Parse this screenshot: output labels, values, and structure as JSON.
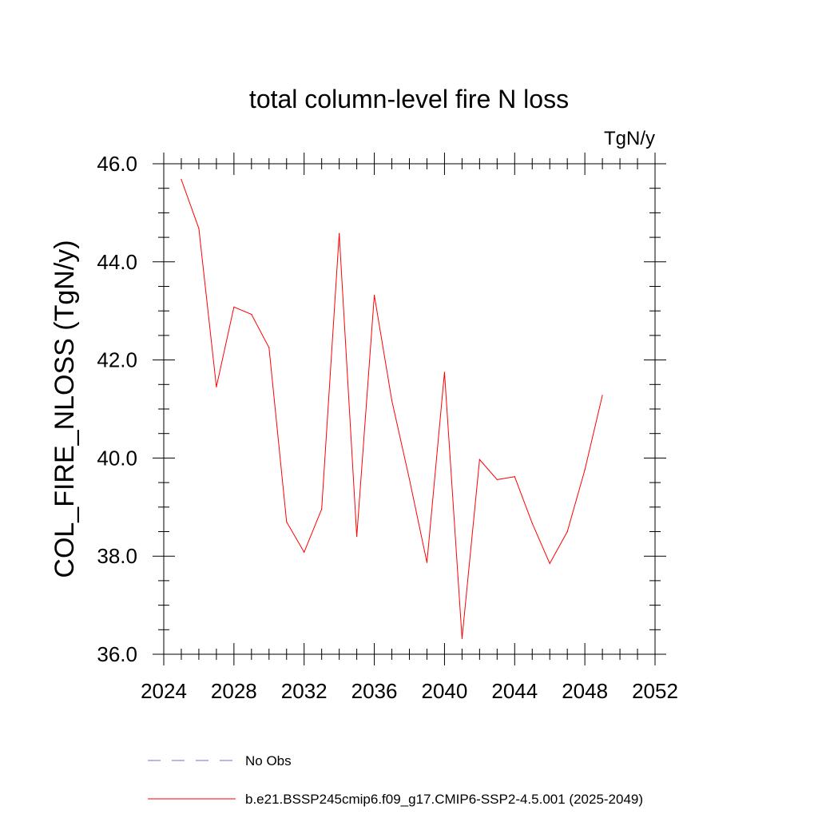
{
  "chart_data": {
    "type": "line",
    "title": "total column-level fire N loss",
    "units": "TgN/y",
    "ylabel": "COL_FIRE_NLOSS  (TgN/y)",
    "xlabel": "",
    "xlim": [
      2024,
      2052
    ],
    "ylim": [
      36.0,
      46.0
    ],
    "x_ticks": [
      2024,
      2028,
      2032,
      2036,
      2040,
      2044,
      2048,
      2052
    ],
    "y_ticks": [
      36.0,
      38.0,
      40.0,
      42.0,
      44.0,
      46.0
    ],
    "x_tick_labels": [
      "2024",
      "2028",
      "2032",
      "2036",
      "2040",
      "2044",
      "2048",
      "2052"
    ],
    "y_tick_labels": [
      "36.0",
      "38.0",
      "40.0",
      "42.0",
      "44.0",
      "46.0"
    ],
    "grid": false,
    "legend_position": "bottom",
    "series": [
      {
        "name": "No Obs",
        "color": "#7b68c8",
        "dash": "dashed",
        "x": [],
        "values": []
      },
      {
        "name": "b.e21.BSSP245cmip6.f09_g17.CMIP6-SSP2-4.5.001 (2025-2049)",
        "color": "#ff0000",
        "dash": "solid",
        "x": [
          2025,
          2026,
          2027,
          2028,
          2029,
          2030,
          2031,
          2032,
          2033,
          2034,
          2035,
          2036,
          2037,
          2038,
          2039,
          2040,
          2041,
          2042,
          2043,
          2044,
          2045,
          2046,
          2047,
          2048,
          2049
        ],
        "values": [
          45.68,
          44.68,
          41.45,
          43.08,
          42.93,
          42.25,
          38.7,
          38.08,
          38.96,
          44.58,
          38.4,
          43.32,
          41.17,
          39.57,
          37.87,
          41.75,
          36.32,
          39.97,
          39.56,
          39.62,
          38.67,
          37.85,
          38.5,
          39.76,
          41.28
        ]
      }
    ]
  }
}
